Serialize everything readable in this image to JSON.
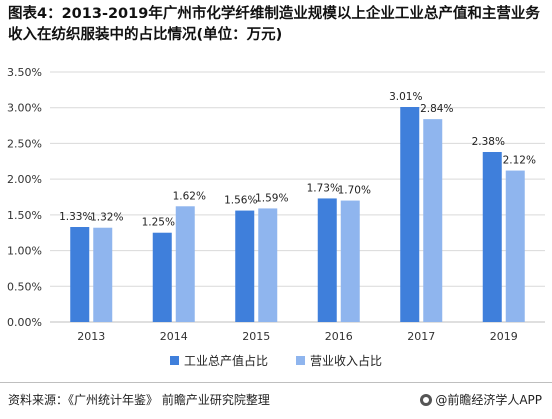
{
  "header": {
    "title": "图表4：2013-2019年广州市化学纤维制造业规模以上企业工业总产值和主营业务收入在纺织服装中的占比情况(单位：万元)"
  },
  "chart_data": {
    "type": "bar",
    "categories": [
      "2013",
      "2014",
      "2015",
      "2016",
      "2017",
      "2019"
    ],
    "series": [
      {
        "name": "工业总产值占比",
        "values": [
          1.33,
          1.25,
          1.56,
          1.73,
          3.01,
          2.38
        ],
        "labels": [
          "1.33%",
          "1.25%",
          "1.56%",
          "1.73%",
          "3.01%",
          "2.38%"
        ],
        "color": "#3F7FDB"
      },
      {
        "name": "营业收入占比",
        "values": [
          1.32,
          1.62,
          1.59,
          1.7,
          2.84,
          2.12
        ],
        "labels": [
          "1.32%",
          "1.62%",
          "1.59%",
          "1.70%",
          "2.84%",
          "2.12%"
        ],
        "color": "#8FB5EE"
      }
    ],
    "ylim": [
      0,
      3.5
    ],
    "yticks": [
      0,
      0.5,
      1.0,
      1.5,
      2.0,
      2.5,
      3.0,
      3.5
    ],
    "ytick_labels": [
      "0.00%",
      "0.50%",
      "1.00%",
      "1.50%",
      "2.00%",
      "2.50%",
      "3.00%",
      "3.50%"
    ],
    "grid": true,
    "legend_position": "bottom"
  },
  "footer": {
    "source": "资料来源：《广州统计年鉴》 前瞻产业研究院整理",
    "brand": "@前瞻经济学人APP"
  },
  "colors": {
    "series1": "#3F7FDB",
    "series2": "#8FB5EE",
    "grid": "#d9d9d9",
    "axis": "#bfbfbf"
  }
}
